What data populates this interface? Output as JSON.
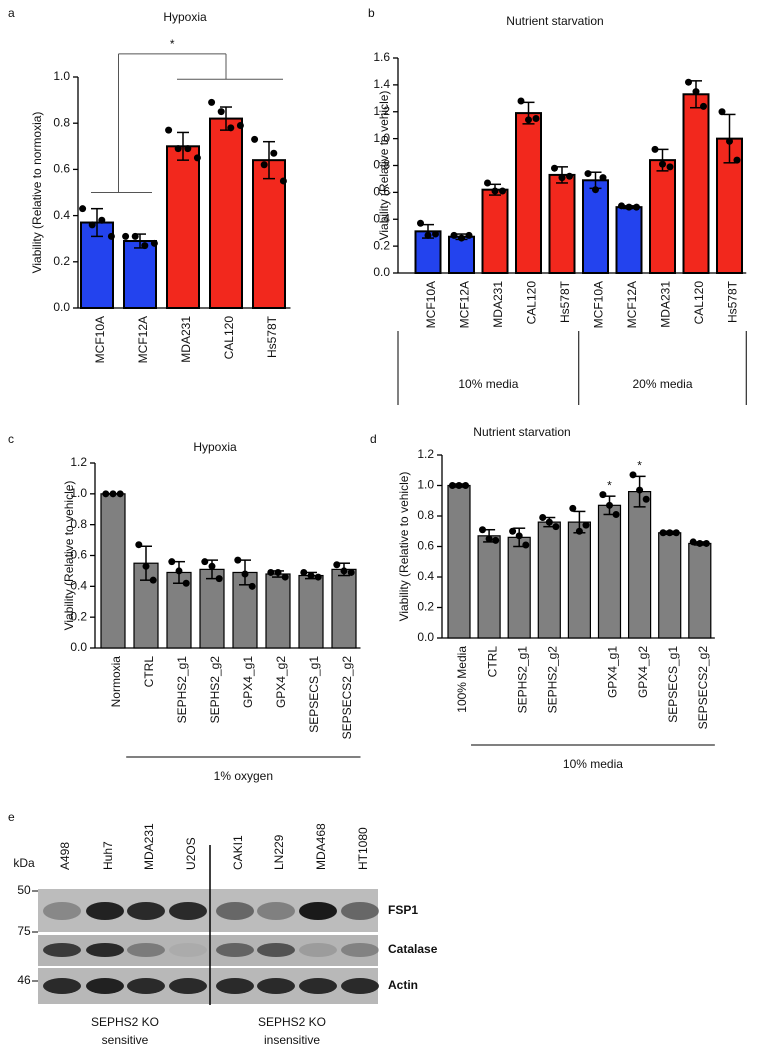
{
  "chart_data": [
    {
      "type": "bar",
      "panel": "a",
      "title": "Hypoxia",
      "ylabel": "Viability (Relative to normoxia)",
      "categories": [
        "MCF10A",
        "MCF12A",
        "MDA231",
        "CAL120",
        "Hs578T"
      ],
      "label_colors": [
        "#3a55b4",
        "#3a55b4",
        "#e2392b",
        "#e2392b",
        "#e2392b"
      ],
      "colors": [
        "#2343ee",
        "#2343ee",
        "#f2281d",
        "#f2281d",
        "#f2281d"
      ],
      "values": [
        0.37,
        0.29,
        0.7,
        0.82,
        0.64
      ],
      "errors": [
        0.06,
        0.03,
        0.06,
        0.05,
        0.08
      ],
      "points": [
        [
          0.43,
          0.36,
          0.38,
          0.31
        ],
        [
          0.31,
          0.31,
          0.27,
          0.28
        ],
        [
          0.77,
          0.69,
          0.69,
          0.65
        ],
        [
          0.89,
          0.85,
          0.78,
          0.79
        ],
        [
          0.73,
          0.62,
          0.67,
          0.55
        ]
      ],
      "comparison": "*",
      "ylim": [
        0,
        1.0
      ],
      "yticks": [
        {
          "value": 0,
          "label": "0.0"
        },
        0.2,
        0.4,
        0.6,
        0.8,
        {
          "value": 1,
          "label": "1.0"
        }
      ]
    },
    {
      "type": "bar",
      "panel": "b",
      "title": "Nutrient starvation",
      "ylabel": "Viability (Relative to vehicle)",
      "categories": [
        "MCF10A",
        "MCF12A",
        "MDA231",
        "CAL120",
        "Hs578T",
        "MCF10A",
        "MCF12A",
        "MDA231",
        "CAL120",
        "Hs578T"
      ],
      "label_colors": [
        "#3a55b4",
        "#3a55b4",
        "#e2392b",
        "#e2392b",
        "#e2392b",
        "#3a55b4",
        "#3a55b4",
        "#e2392b",
        "#e2392b",
        "#e2392b"
      ],
      "colors": [
        "#2343ee",
        "#2343ee",
        "#f2281d",
        "#f2281d",
        "#f2281d",
        "#2343ee",
        "#2343ee",
        "#f2281d",
        "#f2281d",
        "#f2281d"
      ],
      "values": [
        0.31,
        0.27,
        0.62,
        1.19,
        0.73,
        0.69,
        0.49,
        0.84,
        1.33,
        1.0
      ],
      "errors": [
        0.05,
        0.02,
        0.04,
        0.08,
        0.06,
        0.06,
        0.01,
        0.08,
        0.1,
        0.18
      ],
      "points": [
        [
          0.37,
          0.28,
          0.29
        ],
        [
          0.28,
          0.26,
          0.28
        ],
        [
          0.67,
          0.61,
          0.61
        ],
        [
          1.28,
          1.14,
          1.15
        ],
        [
          0.78,
          0.71,
          0.72
        ],
        [
          0.74,
          0.62,
          0.71
        ],
        [
          0.5,
          0.49,
          0.49
        ],
        [
          0.92,
          0.81,
          0.79
        ],
        [
          1.42,
          1.35,
          1.24
        ],
        [
          1.2,
          0.98,
          0.84
        ]
      ],
      "groups": [
        "10% media",
        "20% media"
      ],
      "ylim": [
        0,
        1.6
      ],
      "yticks": [
        {
          "value": 0,
          "label": "0.0"
        },
        0.2,
        0.4,
        0.6,
        0.8,
        {
          "value": 1,
          "label": "1.0"
        },
        1.2,
        1.4,
        1.6
      ]
    },
    {
      "type": "bar",
      "panel": "c",
      "title": "Hypoxia",
      "ylabel": "Viability (Relative to vehicle)",
      "categories": [
        "Normoxia",
        "CTRL",
        "SEPHS2_g1",
        "SEPHS2_g2",
        "GPX4_g1",
        "GPX4_g2",
        "SEPSECS_g1",
        "SEPSECS2_g2"
      ],
      "color": "#808080",
      "values": [
        1.0,
        0.55,
        0.49,
        0.51,
        0.49,
        0.48,
        0.47,
        0.51
      ],
      "errors": [
        0.0,
        0.11,
        0.07,
        0.06,
        0.08,
        0.02,
        0.02,
        0.04
      ],
      "points": [
        [
          1.0,
          1.0,
          1.0
        ],
        [
          0.67,
          0.53,
          0.44
        ],
        [
          0.56,
          0.5,
          0.42
        ],
        [
          0.56,
          0.53,
          0.45
        ],
        [
          0.57,
          0.48,
          0.4
        ],
        [
          0.49,
          0.49,
          0.46
        ],
        [
          0.49,
          0.47,
          0.46
        ],
        [
          0.54,
          0.5,
          0.49
        ]
      ],
      "group_label": "1% oxygen",
      "ylim": [
        0,
        1.2
      ],
      "yticks": [
        {
          "value": 0,
          "label": "0.0"
        },
        0.2,
        0.4,
        0.6,
        0.8,
        {
          "value": 1,
          "label": "1.0"
        },
        1.2
      ]
    },
    {
      "type": "bar",
      "panel": "d",
      "title": "Nutrient starvation",
      "ylabel": "Viability (Relative to vehicle)",
      "categories": [
        "100% Media",
        "CTRL",
        "SEPHS2_g1",
        "SEPHS2_g2",
        null,
        "GPX4_g1",
        "GPX4_g2",
        "SEPSECS_g1",
        "SEPSECS2_g2"
      ],
      "color": "#808080",
      "values": [
        1.0,
        0.67,
        0.66,
        0.76,
        0.76,
        0.87,
        0.96,
        0.69,
        0.62
      ],
      "errors": [
        0.01,
        0.04,
        0.06,
        0.03,
        0.07,
        0.06,
        0.1,
        0.01,
        0.01
      ],
      "points": [
        [
          1.0,
          1.0,
          1.0
        ],
        [
          0.71,
          0.65,
          0.64
        ],
        [
          0.7,
          0.67,
          0.61
        ],
        [
          0.79,
          0.76,
          0.73
        ],
        [
          0.85,
          0.7,
          0.74
        ],
        [
          0.94,
          0.87,
          0.81
        ],
        [
          1.07,
          0.97,
          0.91
        ],
        [
          0.69,
          0.69,
          0.69
        ],
        [
          0.63,
          0.62,
          0.62
        ]
      ],
      "markers": [
        null,
        null,
        null,
        null,
        null,
        "*",
        "*",
        null,
        null
      ],
      "group_label": "10% media",
      "ylim": [
        0,
        1.2
      ],
      "yticks": [
        {
          "value": 0,
          "label": "0.0"
        },
        0.2,
        0.4,
        0.6,
        0.8,
        {
          "value": 1,
          "label": "1.0"
        },
        1.2
      ]
    }
  ],
  "blot": {
    "panel": "e",
    "unit": "kDa",
    "lanes": [
      {
        "label": "A498",
        "color": "#3a55b4"
      },
      {
        "label": "Huh7",
        "color": "#3a55b4"
      },
      {
        "label": "MDA231",
        "color": "#3a55b4"
      },
      {
        "label": "U2OS",
        "color": "#3a55b4"
      },
      {
        "label": "CAKI1",
        "color": "#e2392b"
      },
      {
        "label": "LN229",
        "color": "#e2392b"
      },
      {
        "label": "MDA468",
        "color": "#e2392b"
      },
      {
        "label": "HT1080",
        "color": "#e2392b"
      }
    ],
    "rows": [
      {
        "label": "FSP1",
        "marker": 50
      },
      {
        "label": "Catalase",
        "marker": 75
      },
      {
        "label": "Actin",
        "marker": 46
      }
    ],
    "groups": [
      [
        "SEPHS2 KO",
        "sensitive"
      ],
      [
        "SEPHS2 KO",
        "insensitive"
      ]
    ]
  }
}
